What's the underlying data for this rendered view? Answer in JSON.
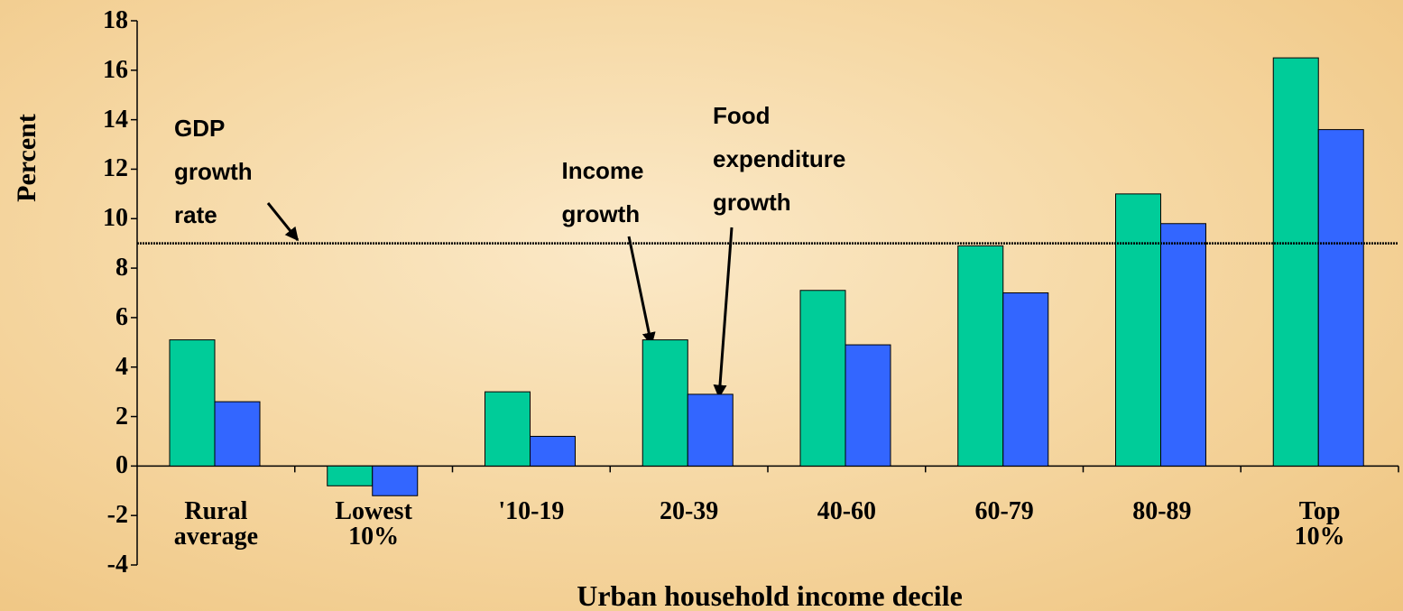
{
  "chart_data": {
    "type": "bar",
    "x_label": "Urban household income decile",
    "y_label": "Percent",
    "categories": [
      "Rural\naverage",
      "Lowest\n10%",
      "'10-19",
      "20-39",
      "40-60",
      "60-79",
      "80-89",
      "Top 10%"
    ],
    "series": [
      {
        "color": "#00cc99",
        "values": [
          5.1,
          -0.8,
          3.0,
          5.1,
          7.1,
          8.9,
          11.0,
          16.5
        ]
      },
      {
        "color": "#3366ff",
        "values": [
          2.6,
          -1.2,
          1.2,
          2.9,
          4.9,
          7.0,
          9.8,
          13.6
        ]
      }
    ],
    "ylim": [
      -4,
      18
    ],
    "yticks": [
      -4,
      -2,
      0,
      2,
      4,
      6,
      8,
      10,
      12,
      14,
      16,
      18
    ],
    "grid": false,
    "reference_line": {
      "value": 9.0,
      "label": "GDP\ngrowth\nrate"
    },
    "annotations": [
      "Income\ngrowth",
      "Food\nexpenditure\ngrowth"
    ]
  }
}
